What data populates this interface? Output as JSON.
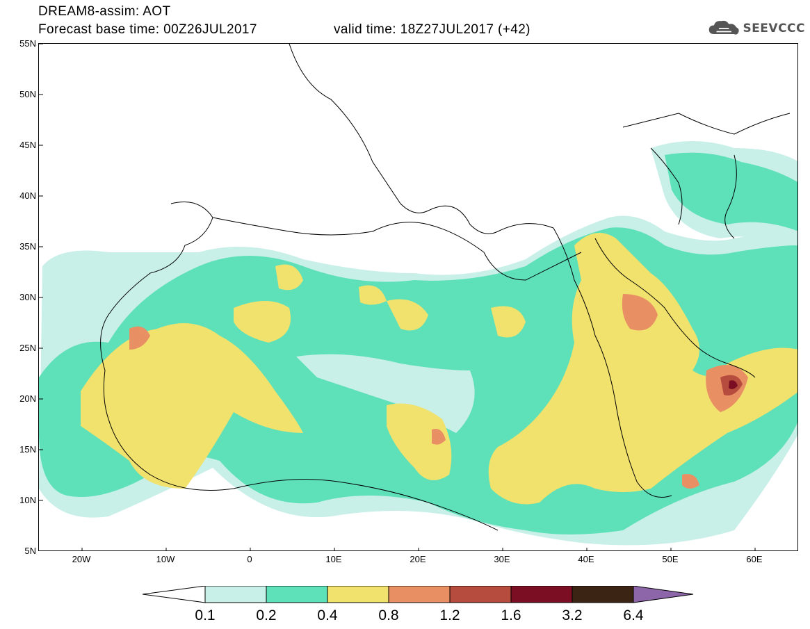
{
  "header": {
    "line1": "DREAM8-assim: AOT",
    "line2": "Forecast base time: 00Z26JUL2017",
    "line3": "valid time: 18Z27JUL2017 (+42)",
    "logo_text": "SEEVCCC",
    "logo_icon": "cloud-icon"
  },
  "map": {
    "lat_labels": [
      "55N",
      "50N",
      "45N",
      "40N",
      "35N",
      "30N",
      "25N",
      "20N",
      "15N",
      "10N",
      "5N"
    ],
    "lon_labels": [
      "20W",
      "10W",
      "0",
      "10E",
      "20E",
      "30E",
      "40E",
      "50E",
      "60E"
    ]
  },
  "legend": {
    "values": [
      "0.1",
      "0.2",
      "0.4",
      "0.8",
      "1.2",
      "1.6",
      "3.2",
      "6.4"
    ],
    "colors": [
      "#ffffff",
      "#c8efe8",
      "#5ee0b8",
      "#f1e26d",
      "#e98f64",
      "#b54c3d",
      "#7c0e23",
      "#3b2413",
      "#8c66a8"
    ]
  },
  "colors": {
    "aot_01": "#c8efe8",
    "aot_02": "#5ee0b8",
    "aot_04": "#f1e26d",
    "aot_08": "#e98f64",
    "aot_12": "#b54c3d",
    "aot_16": "#7c0e23"
  }
}
